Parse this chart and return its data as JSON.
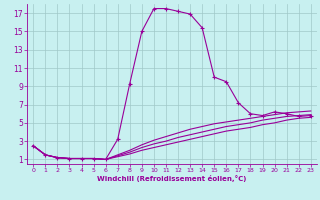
{
  "xlabel": "Windchill (Refroidissement éolien,°C)",
  "ylabel": "",
  "xlim": [
    -0.5,
    23.5
  ],
  "ylim": [
    0.5,
    18
  ],
  "xticks": [
    0,
    1,
    2,
    3,
    4,
    5,
    6,
    7,
    8,
    9,
    10,
    11,
    12,
    13,
    14,
    15,
    16,
    17,
    18,
    19,
    20,
    21,
    22,
    23
  ],
  "yticks": [
    1,
    3,
    5,
    7,
    9,
    11,
    13,
    15,
    17
  ],
  "background_color": "#c8f0f0",
  "grid_color": "#a0c8c8",
  "line_color": "#990099",
  "lines": [
    {
      "x": [
        0,
        1,
        2,
        3,
        4,
        5,
        6,
        7,
        8,
        9,
        10,
        11,
        12,
        13,
        14,
        15,
        16,
        17,
        18,
        19,
        20,
        21,
        22,
        23
      ],
      "y": [
        2.5,
        1.5,
        1.2,
        1.1,
        1.1,
        1.1,
        1.0,
        3.2,
        9.3,
        15.0,
        17.5,
        17.5,
        17.2,
        16.9,
        15.4,
        10.0,
        9.5,
        7.2,
        6.0,
        5.8,
        6.2,
        6.0,
        5.7,
        5.8
      ],
      "marker": true
    },
    {
      "x": [
        0,
        1,
        2,
        3,
        4,
        5,
        6,
        7,
        8,
        9,
        10,
        11,
        12,
        13,
        14,
        15,
        16,
        17,
        18,
        19,
        20,
        21,
        22,
        23
      ],
      "y": [
        2.5,
        1.5,
        1.2,
        1.1,
        1.1,
        1.1,
        1.0,
        1.5,
        2.0,
        2.6,
        3.1,
        3.5,
        3.9,
        4.3,
        4.6,
        4.9,
        5.1,
        5.3,
        5.5,
        5.7,
        5.9,
        6.1,
        6.2,
        6.3
      ],
      "marker": false
    },
    {
      "x": [
        0,
        1,
        2,
        3,
        4,
        5,
        6,
        7,
        8,
        9,
        10,
        11,
        12,
        13,
        14,
        15,
        16,
        17,
        18,
        19,
        20,
        21,
        22,
        23
      ],
      "y": [
        2.5,
        1.5,
        1.2,
        1.1,
        1.1,
        1.1,
        1.0,
        1.4,
        1.8,
        2.3,
        2.7,
        3.0,
        3.4,
        3.7,
        4.0,
        4.3,
        4.6,
        4.8,
        5.0,
        5.3,
        5.5,
        5.7,
        5.8,
        5.9
      ],
      "marker": false
    },
    {
      "x": [
        0,
        1,
        2,
        3,
        4,
        5,
        6,
        7,
        8,
        9,
        10,
        11,
        12,
        13,
        14,
        15,
        16,
        17,
        18,
        19,
        20,
        21,
        22,
        23
      ],
      "y": [
        2.5,
        1.5,
        1.2,
        1.1,
        1.1,
        1.1,
        1.0,
        1.3,
        1.6,
        2.0,
        2.3,
        2.6,
        2.9,
        3.2,
        3.5,
        3.8,
        4.1,
        4.3,
        4.5,
        4.8,
        5.0,
        5.3,
        5.5,
        5.6
      ],
      "marker": false
    }
  ]
}
